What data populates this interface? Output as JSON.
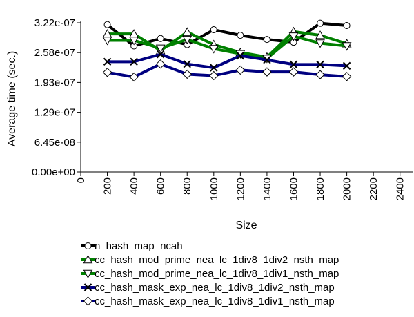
{
  "chart_data": {
    "type": "line",
    "xlabel": "Size",
    "ylabel": "Average time (sec.)",
    "x_ticks": [
      "0",
      "200",
      "400",
      "600",
      "800",
      "1000",
      "1200",
      "1400",
      "1600",
      "1800",
      "2000",
      "2200",
      "2400"
    ],
    "y_ticks": [
      "0.00e+00",
      "6.45e-08",
      "1.29e-07",
      "1.93e-07",
      "2.58e-07",
      "3.22e-07"
    ],
    "xlim": [
      0,
      2500
    ],
    "ylim": [
      0,
      3.22e-07
    ],
    "grid": false,
    "legend_position": "bottom",
    "series": [
      {
        "name": "n_hash_map_ncah",
        "color": "#000000",
        "marker": "circle",
        "x": [
          200,
          400,
          600,
          800,
          1000,
          1200,
          1400,
          1600,
          1800,
          2000
        ],
        "y": [
          3.18e-07,
          2.72e-07,
          2.88e-07,
          2.75e-07,
          3.07e-07,
          2.95e-07,
          2.86e-07,
          2.8e-07,
          3.21e-07,
          3.16e-07
        ]
      },
      {
        "name": "cc_hash_mod_prime_nea_lc_1div8_1div2_nsth_map",
        "color": "#008000",
        "marker": "triangle-up",
        "x": [
          200,
          400,
          600,
          800,
          1000,
          1200,
          1400,
          1600,
          1800,
          2000
        ],
        "y": [
          2.98e-07,
          2.98e-07,
          2.62e-07,
          3.02e-07,
          2.75e-07,
          2.58e-07,
          2.48e-07,
          3.03e-07,
          2.95e-07,
          2.77e-07
        ]
      },
      {
        "name": "cc_hash_mod_prime_nea_lc_1div8_1div1_nsth_map",
        "color": "#008000",
        "marker": "triangle-down",
        "x": [
          200,
          400,
          600,
          800,
          1000,
          1200,
          1400,
          1600,
          1800,
          2000
        ],
        "y": [
          2.84e-07,
          2.84e-07,
          2.67e-07,
          2.86e-07,
          2.66e-07,
          2.55e-07,
          2.45e-07,
          2.93e-07,
          2.78e-07,
          2.72e-07
        ]
      },
      {
        "name": "cc_hash_mask_exp_nea_lc_1div8_1div2_nsth_map",
        "color": "#000080",
        "marker": "x",
        "x": [
          200,
          400,
          600,
          800,
          1000,
          1200,
          1400,
          1600,
          1800,
          2000
        ],
        "y": [
          2.38e-07,
          2.38e-07,
          2.54e-07,
          2.33e-07,
          2.25e-07,
          2.51e-07,
          2.42e-07,
          2.32e-07,
          2.32e-07,
          2.29e-07
        ]
      },
      {
        "name": "cc_hash_mask_exp_nea_lc_1div8_1div1_nsth_map",
        "color": "#000080",
        "marker": "diamond",
        "x": [
          200,
          400,
          600,
          800,
          1000,
          1200,
          1400,
          1600,
          1800,
          2000
        ],
        "y": [
          2.15e-07,
          2.05e-07,
          2.33e-07,
          2.11e-07,
          2.08e-07,
          2.2e-07,
          2.16e-07,
          2.16e-07,
          2.1e-07,
          2.06e-07
        ]
      }
    ]
  }
}
